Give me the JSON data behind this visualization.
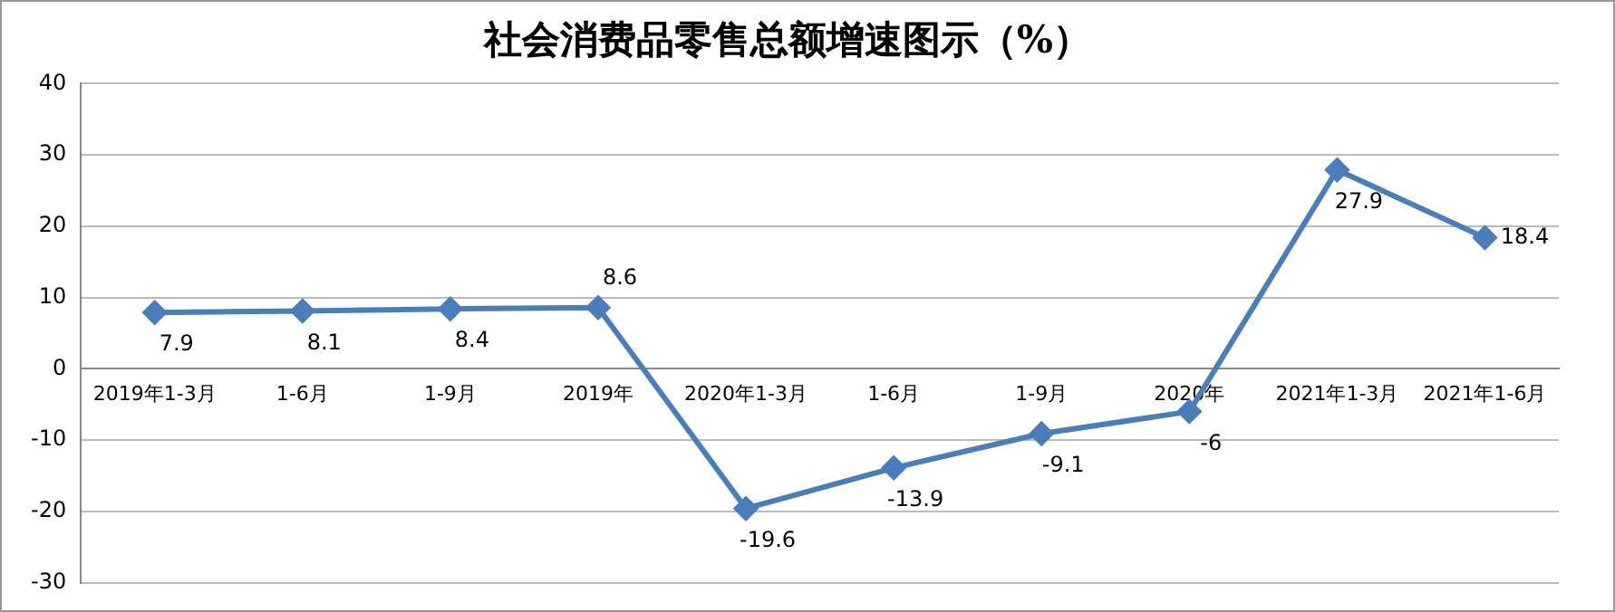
{
  "chart_data": {
    "type": "line",
    "title": "社会消费品零售总额增速图示（%）",
    "categories": [
      "2019年1-3月",
      "1-6月",
      "1-9月",
      "2019年",
      "2020年1-3月",
      "1-6月",
      "1-9月",
      "2020年",
      "2021年1-3月",
      "2021年1-6月"
    ],
    "series": [
      {
        "color": "#4a7ebb",
        "values": [
          7.9,
          8.1,
          8.4,
          8.6,
          -19.6,
          -13.9,
          -9.1,
          -6,
          27.9,
          18.4
        ]
      }
    ],
    "ylim": [
      -30,
      40
    ],
    "yticks": [
      -30,
      -20,
      -10,
      0,
      10,
      20,
      30,
      40
    ],
    "grid": "y",
    "legend": false,
    "marker": "diamond",
    "line_style": "solid",
    "data_labels": true
  }
}
